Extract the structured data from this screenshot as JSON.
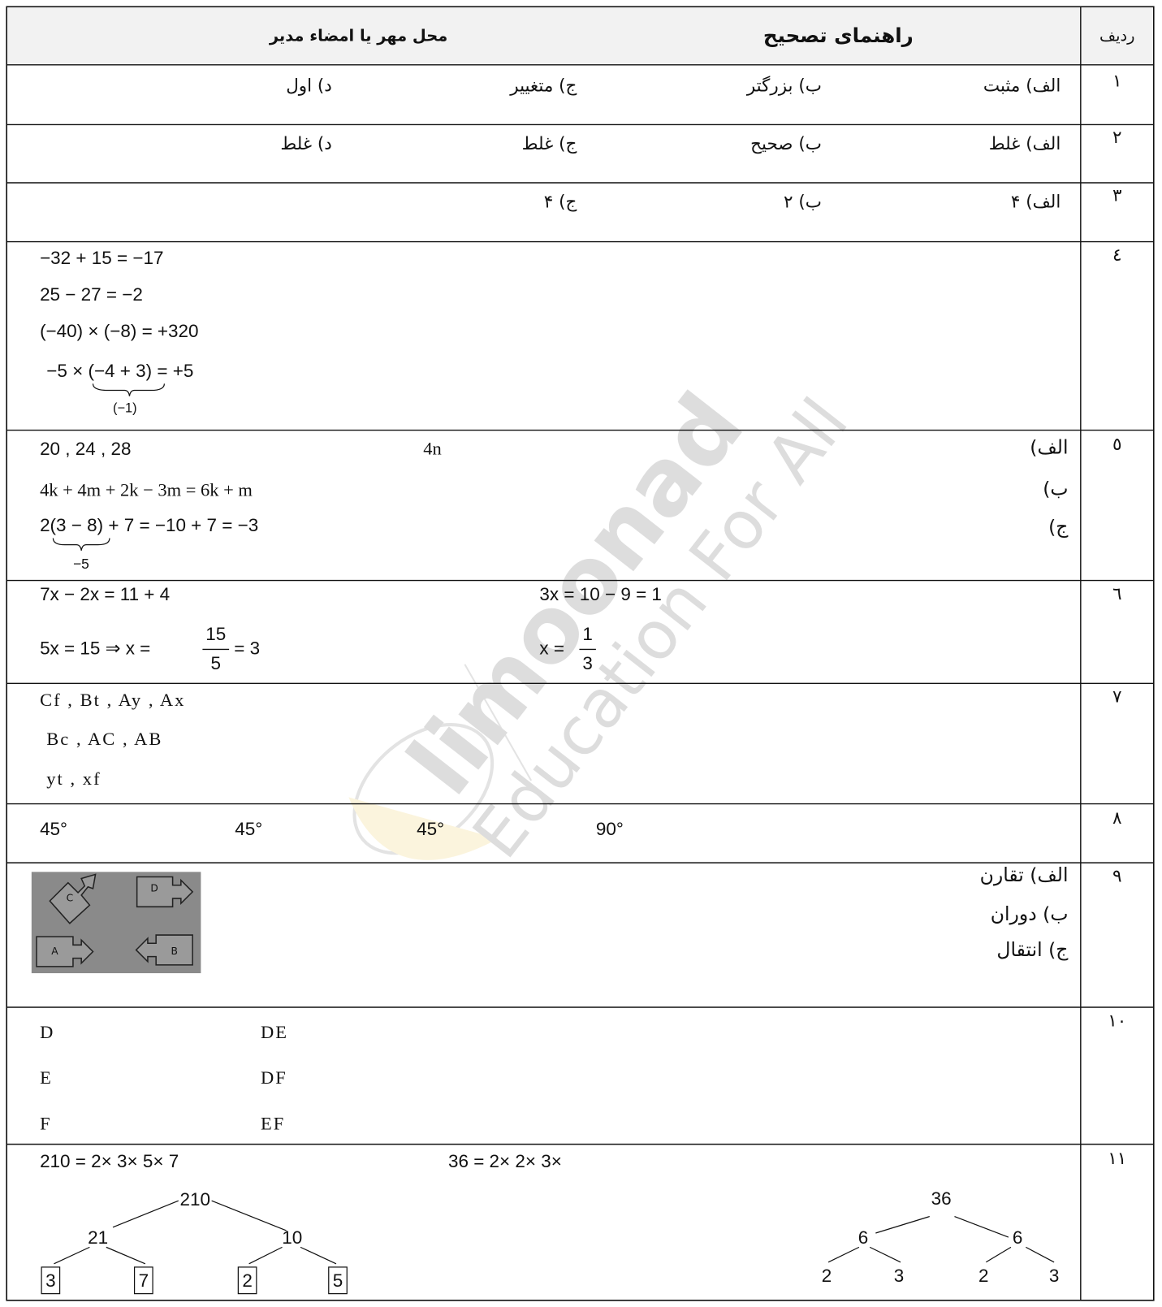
{
  "header": {
    "row_label": "ردیف",
    "guide": "راهنمای تصحیح",
    "stamp": "محل مهر یا امضاء مدیر"
  },
  "rows": [
    {
      "number": "۱",
      "answers": [
        "الف) مثبت",
        "ب) بزرگتر",
        "ج) متغییر",
        "د) اول"
      ]
    },
    {
      "number": "۲",
      "answers": [
        "الف) غلط",
        "ب) صحیح",
        "ج) غلط",
        "د) غلط"
      ]
    },
    {
      "number": "۳",
      "answers": [
        "الف) ۴",
        "ب) ۲",
        "ج) ۴"
      ]
    },
    {
      "number": "٤",
      "lines": [
        "−32 + 15 = −17",
        "25 − 27 = −2",
        "(−40) × (−8) = +320",
        "−5 × (−4 + 3) = +5",
        "(−1)"
      ]
    },
    {
      "number": "٥",
      "labels": [
        "الف)",
        "ب)",
        "ج)"
      ],
      "lines": [
        "20 , 24 , 28",
        "4n",
        "4k + 4m + 2k − 3m = 6k + m",
        "2(3 − 8) + 7 = −10 + 7 = −3",
        "−5"
      ]
    },
    {
      "number": "٦",
      "lines": [
        "7x − 2x = 11 + 4",
        "5x = 15  ⇒  x =",
        "15",
        "5",
        "= 3",
        "3x = 10 − 9 = 1",
        "x =",
        "1",
        "3"
      ]
    },
    {
      "number": "٧",
      "lines": [
        "Cf , Bt , Ay , Ax",
        "Bc , AC , AB",
        "yt , xf"
      ]
    },
    {
      "number": "٨",
      "lines": [
        "45°",
        "45°",
        "45°",
        "90°"
      ]
    },
    {
      "number": "٩",
      "lines": [
        "الف) تقارن",
        "ب) دوران",
        "ج) انتقال"
      ],
      "figure_labels": [
        "C",
        "D",
        "A",
        "B"
      ]
    },
    {
      "number": "١٠",
      "lines": [
        "D",
        "E",
        "F",
        "DE",
        "DF",
        "EF"
      ]
    },
    {
      "number": "١١",
      "lines": [
        "210 = 2× 3× 5× 7",
        "36 = 2× 2× 3×"
      ],
      "tree_left": [
        "210",
        "21",
        "10",
        "3",
        "7",
        "2",
        "5"
      ],
      "tree_right": [
        "36",
        "6",
        "6",
        "2",
        "3",
        "2",
        "3"
      ]
    }
  ],
  "watermark": {
    "brand": "limoonad",
    "tagline": "Education For All"
  }
}
